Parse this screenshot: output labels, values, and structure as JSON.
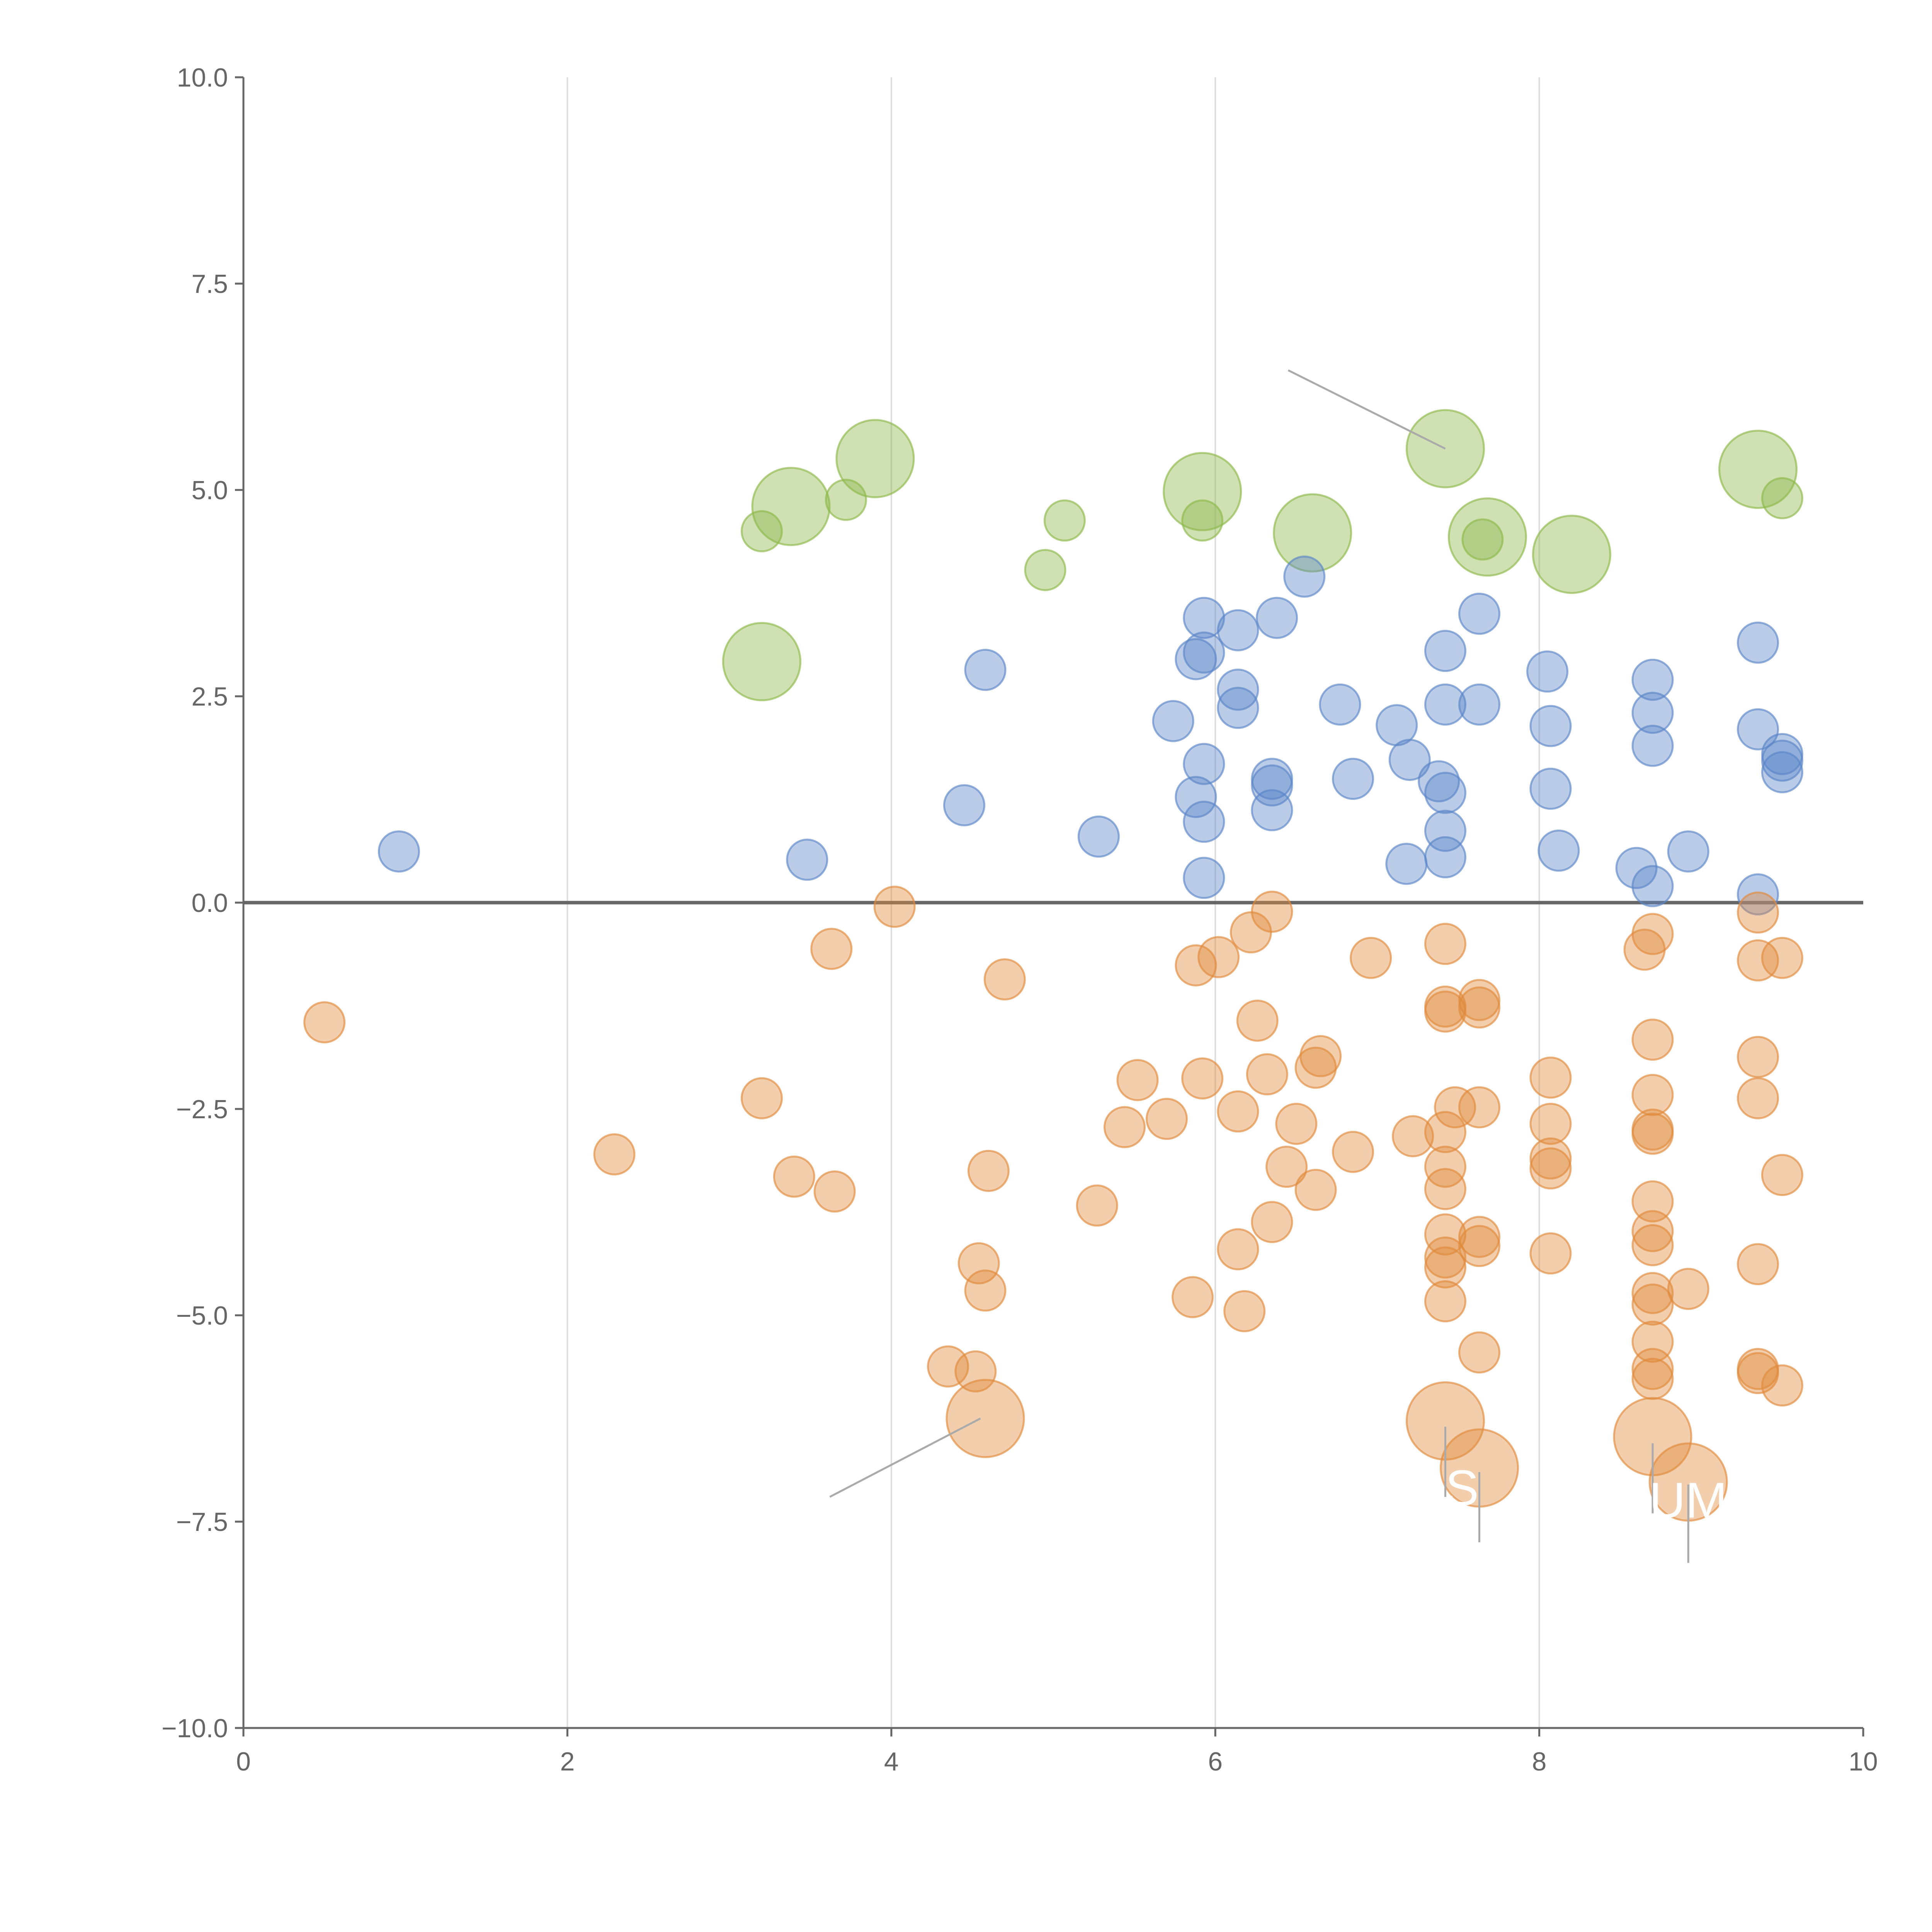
{
  "chart_data": {
    "type": "scatter",
    "title": "",
    "xlabel": "",
    "ylabel": "",
    "xlim": [
      0,
      10
    ],
    "ylim": [
      -10,
      10
    ],
    "grid": "vertical",
    "legend": "none",
    "x_ticks": [
      "0",
      "2",
      "4",
      "6",
      "8",
      "10"
    ],
    "y_ticks": [
      "10.0",
      "7.5",
      "5.0",
      "2.5",
      "0.0",
      "−2.5",
      "−5.0",
      "−7.5",
      "−10.0"
    ],
    "colors": {
      "green": "#8db84a",
      "blue": "#5b86c7",
      "orange": "#e08b3c",
      "leader": "#aaaaaa",
      "axis": "#666666",
      "grid": "#dddddd"
    },
    "series": [
      {
        "name": "green",
        "color": "#8db84a",
        "points": [
          [
            3.2,
            2.92,
            2
          ],
          [
            3.38,
            4.8,
            2
          ],
          [
            3.9,
            5.38,
            2
          ],
          [
            5.92,
            4.98,
            2
          ],
          [
            6.6,
            4.48,
            2
          ],
          [
            7.42,
            5.5,
            2
          ],
          [
            7.68,
            4.43,
            2
          ],
          [
            8.2,
            4.22,
            2
          ],
          [
            9.35,
            5.25,
            2
          ],
          [
            3.2,
            4.5,
            1
          ],
          [
            3.72,
            4.88,
            1
          ],
          [
            4.95,
            4.03,
            1
          ],
          [
            5.07,
            4.63,
            1
          ],
          [
            5.92,
            4.63,
            1
          ],
          [
            7.65,
            4.4,
            1
          ],
          [
            9.5,
            4.9,
            1
          ]
        ]
      },
      {
        "name": "blue",
        "color": "#5b86c7",
        "points": [
          [
            0.96,
            0.62,
            1
          ],
          [
            3.48,
            0.52,
            1
          ],
          [
            4.45,
            1.18,
            1
          ],
          [
            4.58,
            2.82,
            1
          ],
          [
            5.28,
            0.8,
            1
          ],
          [
            5.74,
            2.2,
            1
          ],
          [
            5.88,
            2.95,
            1
          ],
          [
            5.88,
            1.28,
            1
          ],
          [
            5.93,
            3.45,
            1
          ],
          [
            5.93,
            3.03,
            1
          ],
          [
            5.93,
            1.68,
            1
          ],
          [
            5.93,
            0.98,
            1
          ],
          [
            5.93,
            0.3,
            1
          ],
          [
            6.14,
            3.3,
            1
          ],
          [
            6.14,
            2.58,
            1
          ],
          [
            6.14,
            2.36,
            1
          ],
          [
            6.35,
            1.5,
            1
          ],
          [
            6.35,
            1.42,
            1
          ],
          [
            6.35,
            1.12,
            1
          ],
          [
            6.38,
            3.45,
            1
          ],
          [
            6.55,
            3.95,
            1
          ],
          [
            6.77,
            2.4,
            1
          ],
          [
            6.85,
            1.5,
            1
          ],
          [
            7.12,
            2.15,
            1
          ],
          [
            7.2,
            1.73,
            1
          ],
          [
            7.18,
            0.47,
            1
          ],
          [
            7.38,
            1.47,
            1
          ],
          [
            7.42,
            3.05,
            1
          ],
          [
            7.42,
            2.4,
            1
          ],
          [
            7.42,
            1.33,
            1
          ],
          [
            7.42,
            0.87,
            1
          ],
          [
            7.42,
            0.55,
            1
          ],
          [
            7.63,
            3.5,
            1
          ],
          [
            7.63,
            2.4,
            1
          ],
          [
            8.05,
            2.8,
            1
          ],
          [
            8.07,
            2.14,
            1
          ],
          [
            8.07,
            1.38,
            1
          ],
          [
            8.12,
            0.63,
            1
          ],
          [
            8.6,
            0.42,
            1
          ],
          [
            8.7,
            2.7,
            1
          ],
          [
            8.7,
            2.3,
            1
          ],
          [
            8.7,
            1.9,
            1
          ],
          [
            8.7,
            0.2,
            1
          ],
          [
            8.92,
            0.62,
            1
          ],
          [
            9.35,
            3.15,
            1
          ],
          [
            9.35,
            2.1,
            1
          ],
          [
            9.35,
            0.1,
            1
          ],
          [
            9.5,
            1.8,
            1
          ],
          [
            9.5,
            1.72,
            1
          ],
          [
            9.5,
            1.58,
            1
          ]
        ]
      },
      {
        "name": "orange",
        "color": "#e08b3c",
        "points": [
          [
            0.5,
            -1.45,
            1
          ],
          [
            2.29,
            -3.05,
            1
          ],
          [
            3.2,
            -2.37,
            1
          ],
          [
            3.4,
            -3.32,
            1
          ],
          [
            3.63,
            -0.56,
            1
          ],
          [
            3.65,
            -3.5,
            1
          ],
          [
            4.02,
            -0.05,
            1
          ],
          [
            4.35,
            -5.62,
            1
          ],
          [
            4.52,
            -5.68,
            1
          ],
          [
            4.54,
            -4.37,
            1
          ],
          [
            4.58,
            -4.7,
            1
          ],
          [
            4.6,
            -3.25,
            1
          ],
          [
            4.7,
            -0.93,
            1
          ],
          [
            5.27,
            -3.67,
            1
          ],
          [
            5.44,
            -2.72,
            1
          ],
          [
            5.52,
            -2.15,
            1
          ],
          [
            5.7,
            -2.62,
            1
          ],
          [
            5.86,
            -4.78,
            1
          ],
          [
            5.88,
            -0.76,
            1
          ],
          [
            5.92,
            -2.13,
            1
          ],
          [
            6.02,
            -0.66,
            1
          ],
          [
            6.14,
            -2.53,
            1
          ],
          [
            6.14,
            -4.2,
            1
          ],
          [
            6.18,
            -4.95,
            1
          ],
          [
            6.22,
            -0.36,
            1
          ],
          [
            6.26,
            -1.43,
            1
          ],
          [
            6.32,
            -2.08,
            1
          ],
          [
            6.35,
            -0.11,
            1
          ],
          [
            6.35,
            -3.87,
            1
          ],
          [
            6.44,
            -3.2,
            1
          ],
          [
            6.5,
            -2.68,
            1
          ],
          [
            6.62,
            -2.0,
            1
          ],
          [
            6.62,
            -3.48,
            1
          ],
          [
            6.65,
            -1.86,
            1
          ],
          [
            6.85,
            -3.02,
            1
          ],
          [
            6.96,
            -0.67,
            1
          ],
          [
            7.22,
            -2.83,
            1
          ],
          [
            7.42,
            -0.5,
            1
          ],
          [
            7.42,
            -1.26,
            1
          ],
          [
            7.42,
            -1.32,
            1
          ],
          [
            7.42,
            -2.78,
            1
          ],
          [
            7.42,
            -3.2,
            1
          ],
          [
            7.42,
            -3.47,
            1
          ],
          [
            7.42,
            -4.02,
            1
          ],
          [
            7.42,
            -4.3,
            1
          ],
          [
            7.42,
            -4.42,
            1
          ],
          [
            7.42,
            -4.83,
            1
          ],
          [
            7.48,
            -2.48,
            1
          ],
          [
            7.63,
            -1.18,
            1
          ],
          [
            7.63,
            -1.27,
            1
          ],
          [
            7.63,
            -2.48,
            1
          ],
          [
            7.63,
            -4.05,
            1
          ],
          [
            7.63,
            -4.16,
            1
          ],
          [
            7.63,
            -5.45,
            1
          ],
          [
            8.07,
            -2.12,
            1
          ],
          [
            8.07,
            -2.68,
            1
          ],
          [
            8.07,
            -3.1,
            1
          ],
          [
            8.07,
            -3.22,
            1
          ],
          [
            8.07,
            -4.25,
            1
          ],
          [
            8.65,
            -0.57,
            1
          ],
          [
            8.7,
            -0.38,
            1
          ],
          [
            8.7,
            -1.66,
            1
          ],
          [
            8.7,
            -2.33,
            1
          ],
          [
            8.7,
            -2.75,
            1
          ],
          [
            8.7,
            -2.8,
            1
          ],
          [
            8.7,
            -3.62,
            1
          ],
          [
            8.7,
            -3.98,
            1
          ],
          [
            8.7,
            -4.15,
            1
          ],
          [
            8.7,
            -4.73,
            1
          ],
          [
            8.7,
            -4.87,
            1
          ],
          [
            8.7,
            -5.32,
            1
          ],
          [
            8.7,
            -5.65,
            1
          ],
          [
            8.7,
            -5.77,
            1
          ],
          [
            8.92,
            -4.68,
            1
          ],
          [
            9.35,
            -0.12,
            1
          ],
          [
            9.35,
            -0.7,
            1
          ],
          [
            9.35,
            -1.87,
            1
          ],
          [
            9.35,
            -2.37,
            1
          ],
          [
            9.35,
            -4.38,
            1
          ],
          [
            9.35,
            -5.65,
            1
          ],
          [
            9.35,
            -5.7,
            1
          ],
          [
            9.5,
            -0.67,
            1
          ],
          [
            9.5,
            -3.3,
            1
          ],
          [
            9.5,
            -5.85,
            1
          ],
          [
            4.58,
            -6.25,
            2
          ],
          [
            7.42,
            -6.28,
            2
          ],
          [
            7.63,
            -6.85,
            2
          ],
          [
            8.7,
            -6.47,
            2
          ],
          [
            8.92,
            -7.02,
            2
          ]
        ]
      }
    ],
    "leader_lines": [
      [
        6.45,
        6.45,
        7.42,
        5.5
      ],
      [
        3.62,
        -7.2,
        4.55,
        -6.25
      ],
      [
        7.42,
        -6.35,
        7.42,
        -7.2
      ],
      [
        7.63,
        -6.9,
        7.63,
        -7.75
      ],
      [
        8.7,
        -6.55,
        8.7,
        -7.4
      ],
      [
        8.92,
        -7.05,
        8.92,
        -8.0
      ]
    ],
    "annotations": [
      {
        "text": "AS",
        "x": 7.42,
        "y": -7.3
      },
      {
        "text": "UM",
        "x": 8.92,
        "y": -7.45
      }
    ]
  }
}
